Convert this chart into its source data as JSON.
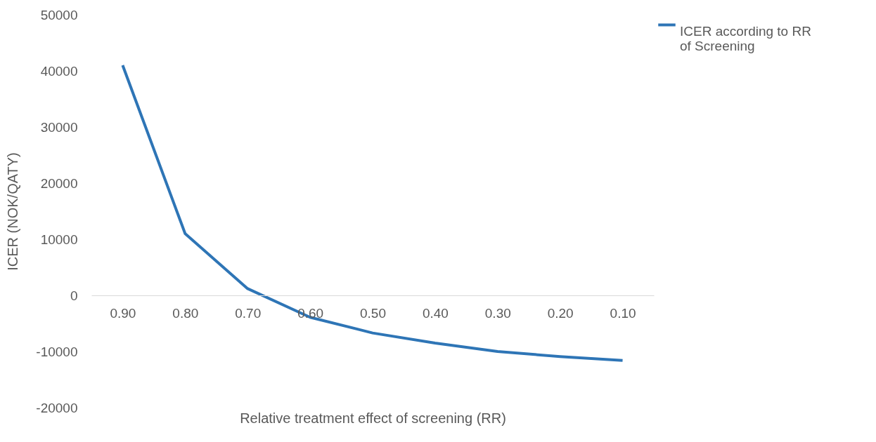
{
  "chart_data": {
    "type": "line",
    "xlabel": "Relative treatment effect of screening (RR)",
    "ylabel": "ICER (NOK/QATY)",
    "categories": [
      "0.90",
      "0.80",
      "0.70",
      "0.60",
      "0.50",
      "0.40",
      "0.30",
      "0.20",
      "0.10"
    ],
    "series": [
      {
        "name": "ICER according to RR of Screening",
        "color": "#2e75b6",
        "values": [
          41000,
          11000,
          1200,
          -3900,
          -6700,
          -8500,
          -10000,
          -10900,
          -11600
        ]
      }
    ],
    "ylim": [
      -20000,
      50000
    ],
    "yticks": [
      -20000,
      -10000,
      0,
      10000,
      20000,
      30000,
      40000,
      50000
    ],
    "legend": "right"
  }
}
